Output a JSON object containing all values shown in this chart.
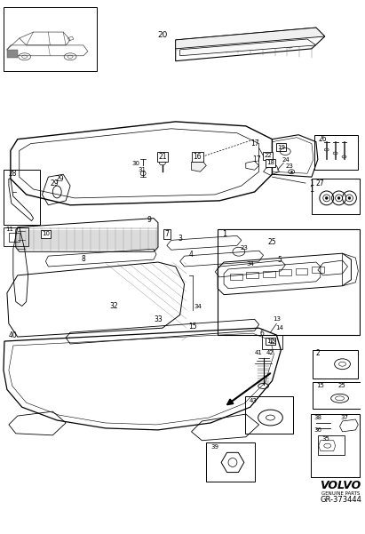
{
  "background_color": "#ffffff",
  "line_color": "#1a1a1a",
  "fig_width": 4.11,
  "fig_height": 6.01,
  "dpi": 100,
  "volvo_text": "VOLVO",
  "subtitle_text": "GENUINE PARTS",
  "part_number": "GR-373444"
}
